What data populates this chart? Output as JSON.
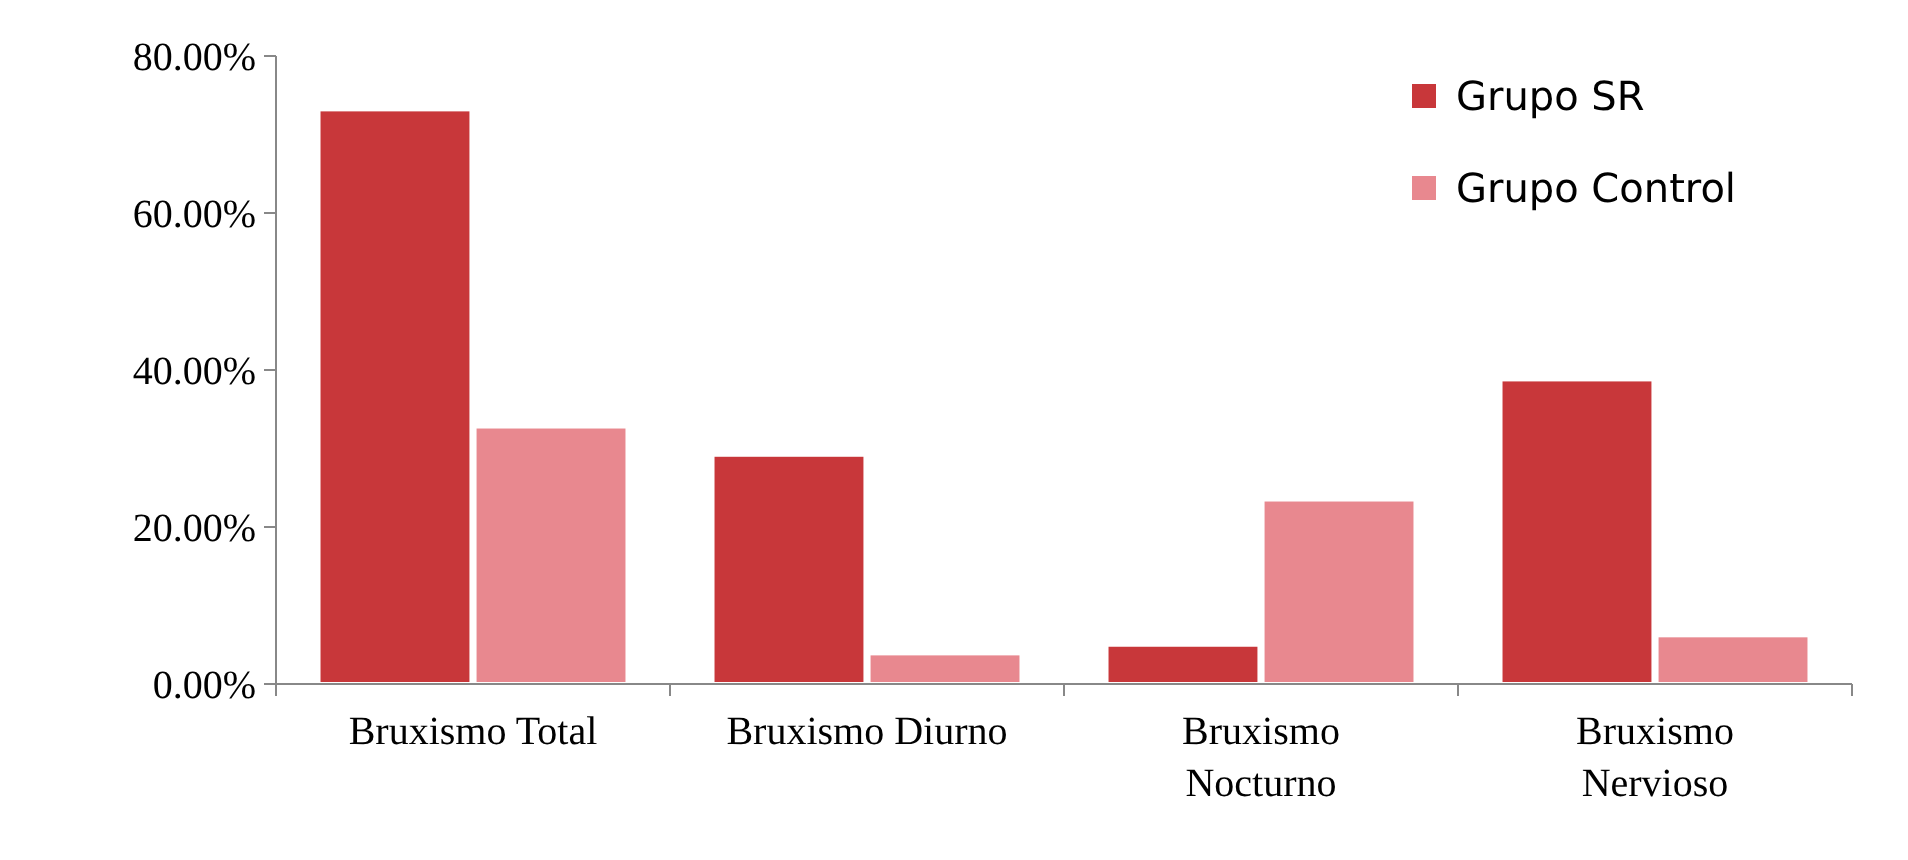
{
  "chart_data": {
    "type": "bar",
    "categories": [
      "Bruxismo Total",
      "Bruxismo Diurno",
      "Bruxismo Nocturno",
      "Bruxismo Nervioso"
    ],
    "series": [
      {
        "name": "Grupo SR",
        "color": "#c8373a",
        "values": [
          73.2,
          29.2,
          5,
          38.8
        ]
      },
      {
        "name": "Grupo Control",
        "color": "#e8888f",
        "values": [
          32.8,
          3.9,
          23.5,
          6.2
        ]
      }
    ],
    "ylim": [
      0,
      80
    ],
    "yticks": [
      {
        "value": 0,
        "label": "0.00%"
      },
      {
        "value": 20,
        "label": "20.00%"
      },
      {
        "value": 40,
        "label": "40.00%"
      },
      {
        "value": 60,
        "label": "60.00%"
      },
      {
        "value": 80,
        "label": "80.00%"
      }
    ],
    "grid": false,
    "legend": "top right"
  }
}
